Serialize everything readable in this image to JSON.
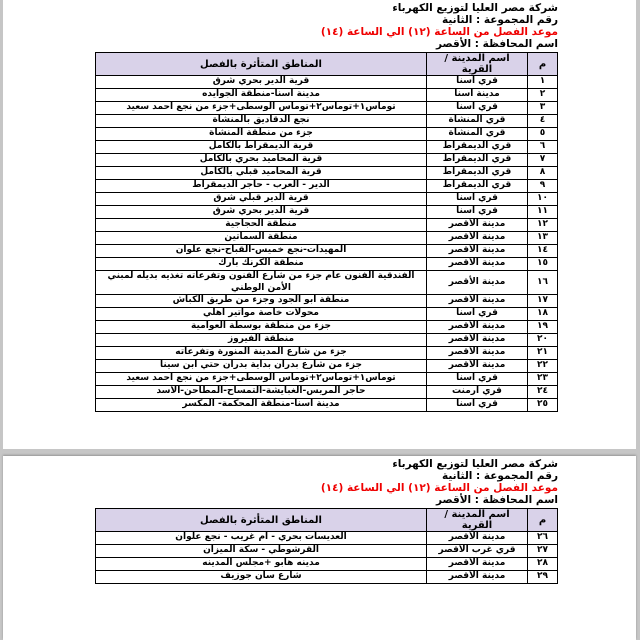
{
  "colors": {
    "accent_red": "#ef0000",
    "table_header_bg": "#d9d2e9",
    "page_bg": "#ffffff",
    "canvas_bg": "#c6c6c6"
  },
  "header": {
    "company": "شركة مصر العليا لتوزيع الكهرباء",
    "group_label": "رقم المجموعة : الثانية",
    "outage_time": "موعد الفصل من الساعة (١٢) الي الساعة (١٤)",
    "governorate": "اسم المحافظة : الأقصر"
  },
  "table_columns": {
    "no": "م",
    "city": "اسم المدينة / القرية",
    "areas": "المناطق المتأثرة بالفصل"
  },
  "pages": [
    {
      "rows": [
        {
          "no": "١",
          "city": "قري اسنا",
          "area": "قرية الدير بحري شرق"
        },
        {
          "no": "٢",
          "city": "مدينة اسنا",
          "area": "مدينة اسنا-منطقة الجوايده"
        },
        {
          "no": "٣",
          "city": "قري اسنا",
          "area": "توماس١+توماس٢+توماس الوسطى+جزء من نجع احمد سعيد"
        },
        {
          "no": "٤",
          "city": "قري المنشاة",
          "area": "نجع الدقاديق بالمنشاة"
        },
        {
          "no": "٥",
          "city": "قري المنشاة",
          "area": "جزء من منطقة المنشاة"
        },
        {
          "no": "٦",
          "city": "قري الديمقراط",
          "area": "قرية الديمقراط بالكامل"
        },
        {
          "no": "٧",
          "city": "قري الديمقراط",
          "area": "قرية المحاميد بحري بالكامل"
        },
        {
          "no": "٨",
          "city": "قري الديمقراط",
          "area": "قرية المحاميد قبلي بالكامل"
        },
        {
          "no": "٩",
          "city": "قري الديمقراط",
          "area": "الدير - العرب - حاجر الديمقراط"
        },
        {
          "no": "١٠",
          "city": "قري اسنا",
          "area": "قرية الدير قبلي شرق"
        },
        {
          "no": "١١",
          "city": "قري اسنا",
          "area": "قرية الدير بحري شرق"
        },
        {
          "no": "١٢",
          "city": "مدينة الأقصر",
          "area": "منطقة الحجاجية"
        },
        {
          "no": "١٣",
          "city": "مدينة الأقصر",
          "area": "منطقة السماتين"
        },
        {
          "no": "١٤",
          "city": "مدينة الأقصر",
          "area": "المهيدات-نجع خميس-القباح-نجع علوان"
        },
        {
          "no": "١٥",
          "city": "مدينة الأقصر",
          "area": "منطقة الكرنك بارك"
        },
        {
          "no": "١٦",
          "city": "مدينة الأقصر",
          "area": "الفندقية الفنون عام جزء من شارع الفنون وتفرعاته تغذيه بديله لمبني الأمن الوطني"
        },
        {
          "no": "١٧",
          "city": "مدينة الأقصر",
          "area": "منطقة ابو الجود وجزء من طريق الكباش"
        },
        {
          "no": "١٨",
          "city": "قري اسنا",
          "area": "محولات خاصة مواتير اهلي"
        },
        {
          "no": "١٩",
          "city": "مدينة الأقصر",
          "area": "جزء من منطقة بوسطة العوامية"
        },
        {
          "no": "٢٠",
          "city": "مدينة الأقصر",
          "area": "منطقة الفيروز"
        },
        {
          "no": "٢١",
          "city": "مدينة الأقصر",
          "area": "جزء من شارع المدينة المنورة وتفرعاته"
        },
        {
          "no": "٢٢",
          "city": "مدينة الأقصر",
          "area": "جزء من شارع بدران بداية بدران حتي ابن سينا"
        },
        {
          "no": "٢٣",
          "city": "قري اسنا",
          "area": "توماس١+توماس٢+توماس الوسطى+جزء من نجع احمد سعيد"
        },
        {
          "no": "٢٤",
          "city": "قري ارمنت",
          "area": "حاجر المريس-الغبايشة-التمساح-المطاحن-الأسد"
        },
        {
          "no": "٢٥",
          "city": "قري اسنا",
          "area": "مدينة اسنا-منطقة المحكمة- المكسر"
        }
      ]
    },
    {
      "rows": [
        {
          "no": "٢٦",
          "city": "مدينة الأقصر",
          "area": "العديسات بحري - ام غريب - نجع علوان"
        },
        {
          "no": "٢٧",
          "city": "قري غرب الأقصر",
          "area": "القرشوطي - سكة الميزان"
        },
        {
          "no": "٢٨",
          "city": "مدينة الأقصر",
          "area": "مدينه هابو +مجلس المدينه"
        },
        {
          "no": "٢٩",
          "city": "مدينة الأقصر",
          "area": "شارع سان جوزيف"
        }
      ]
    }
  ]
}
